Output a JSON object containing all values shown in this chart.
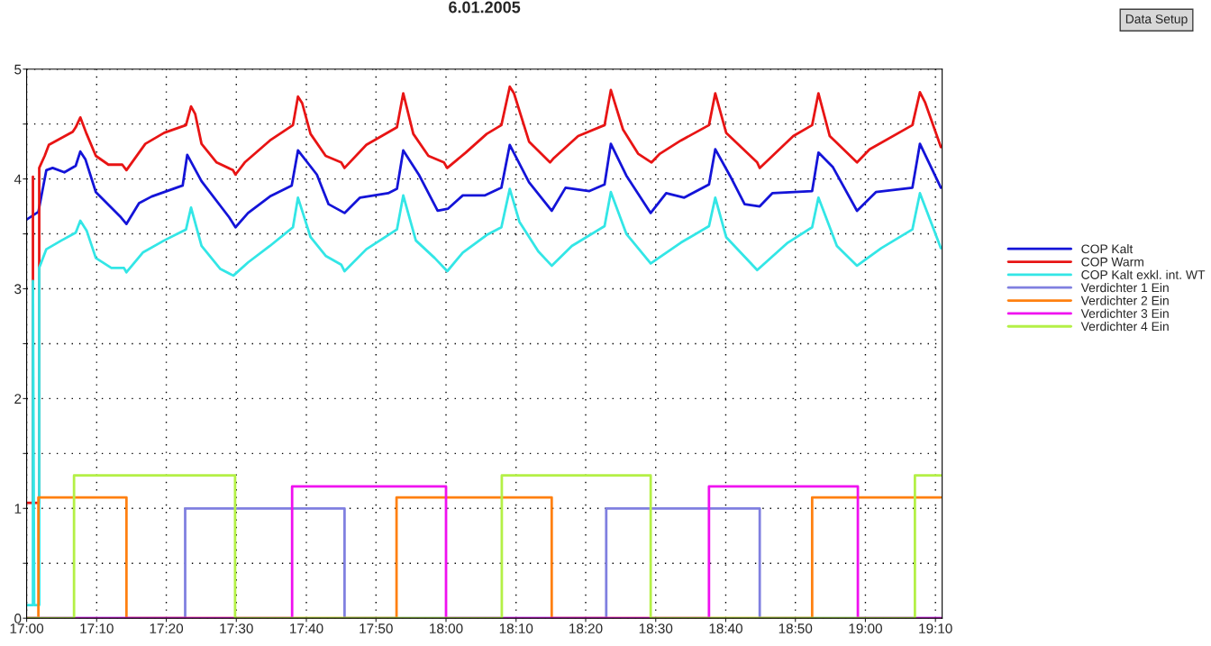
{
  "chart_data": {
    "type": "line",
    "title": "6.01.2005",
    "annotations": [
      "Data Setup"
    ],
    "xlim": [
      17.0,
      19.183
    ],
    "ylim": [
      0,
      5
    ],
    "xticks": [
      {
        "value": 17.0,
        "label": "17:00"
      },
      {
        "value": 17.167,
        "label": "17:10"
      },
      {
        "value": 17.333,
        "label": "17:20"
      },
      {
        "value": 17.5,
        "label": "17:30"
      },
      {
        "value": 17.667,
        "label": "17:40"
      },
      {
        "value": 17.833,
        "label": "17:50"
      },
      {
        "value": 18.0,
        "label": "18:00"
      },
      {
        "value": 18.167,
        "label": "18:10"
      },
      {
        "value": 18.333,
        "label": "18:20"
      },
      {
        "value": 18.5,
        "label": "18:30"
      },
      {
        "value": 18.667,
        "label": "18:40"
      },
      {
        "value": 18.833,
        "label": "18:50"
      },
      {
        "value": 19.0,
        "label": "19:00"
      },
      {
        "value": 19.167,
        "label": "19:10"
      }
    ],
    "yticks": [
      0,
      {
        "value": 0.5,
        "label": null
      },
      1,
      {
        "value": 1.5,
        "label": null
      },
      2,
      {
        "value": 2.5,
        "label": null
      },
      3,
      {
        "value": 3.5,
        "label": null
      },
      4,
      {
        "value": 4.5,
        "label": null
      },
      5
    ],
    "grid": true,
    "legend": "right",
    "line_style": "solid",
    "series": [
      {
        "name": "COP Kalt",
        "color": "#1414d8",
        "x": [
          17.0,
          17.028,
          17.035,
          17.047,
          17.062,
          17.09,
          17.117,
          17.128,
          17.14,
          17.165,
          17.225,
          17.238,
          17.268,
          17.298,
          17.372,
          17.383,
          17.417,
          17.483,
          17.498,
          17.528,
          17.58,
          17.632,
          17.647,
          17.692,
          17.72,
          17.758,
          17.795,
          17.862,
          17.883,
          17.898,
          17.935,
          17.98,
          18.005,
          18.04,
          18.092,
          18.132,
          18.152,
          18.198,
          18.252,
          18.285,
          18.342,
          18.378,
          18.393,
          18.43,
          18.488,
          18.525,
          18.568,
          18.627,
          18.642,
          18.677,
          18.712,
          18.748,
          18.778,
          18.873,
          18.888,
          18.922,
          18.98,
          19.025,
          19.112,
          19.13,
          19.18
        ],
        "values": [
          3.63,
          3.7,
          3.84,
          4.08,
          4.1,
          4.06,
          4.12,
          4.25,
          4.18,
          3.88,
          3.65,
          3.59,
          3.78,
          3.84,
          3.94,
          4.22,
          3.98,
          3.65,
          3.56,
          3.69,
          3.84,
          3.94,
          4.26,
          4.04,
          3.77,
          3.69,
          3.83,
          3.87,
          3.91,
          4.26,
          4.04,
          3.71,
          3.73,
          3.85,
          3.85,
          3.92,
          4.31,
          3.97,
          3.71,
          3.92,
          3.89,
          3.95,
          4.32,
          4.03,
          3.69,
          3.87,
          3.83,
          3.95,
          4.27,
          4.03,
          3.77,
          3.75,
          3.87,
          3.89,
          4.24,
          4.11,
          3.71,
          3.88,
          3.92,
          4.32,
          3.92
        ]
      },
      {
        "name": "COP Warm",
        "color": "#e81414",
        "x": [
          17.0,
          17.015,
          17.015,
          17.015,
          17.03,
          17.03,
          17.043,
          17.053,
          17.11,
          17.117,
          17.128,
          17.143,
          17.165,
          17.195,
          17.228,
          17.238,
          17.283,
          17.328,
          17.38,
          17.392,
          17.402,
          17.417,
          17.453,
          17.492,
          17.498,
          17.52,
          17.58,
          17.635,
          17.647,
          17.657,
          17.677,
          17.713,
          17.75,
          17.758,
          17.81,
          17.883,
          17.898,
          17.922,
          17.958,
          17.995,
          18.003,
          18.047,
          18.097,
          18.132,
          18.152,
          18.162,
          18.198,
          18.248,
          18.257,
          18.315,
          18.378,
          18.393,
          18.422,
          18.458,
          18.49,
          18.51,
          18.56,
          18.627,
          18.642,
          18.668,
          18.742,
          18.748,
          18.828,
          18.873,
          18.888,
          18.915,
          18.98,
          19.01,
          19.112,
          19.13,
          19.142,
          19.18
        ],
        "values": [
          1.05,
          1.05,
          4.02,
          1.05,
          1.05,
          4.1,
          4.21,
          4.31,
          4.43,
          4.47,
          4.56,
          4.41,
          4.21,
          4.13,
          4.13,
          4.08,
          4.32,
          4.42,
          4.49,
          4.66,
          4.59,
          4.32,
          4.15,
          4.08,
          4.04,
          4.15,
          4.35,
          4.49,
          4.75,
          4.69,
          4.41,
          4.21,
          4.15,
          4.1,
          4.31,
          4.47,
          4.78,
          4.41,
          4.21,
          4.15,
          4.1,
          4.24,
          4.41,
          4.49,
          4.84,
          4.78,
          4.34,
          4.15,
          4.19,
          4.39,
          4.49,
          4.81,
          4.45,
          4.23,
          4.15,
          4.23,
          4.35,
          4.49,
          4.78,
          4.42,
          4.15,
          4.1,
          4.39,
          4.49,
          4.78,
          4.39,
          4.15,
          4.27,
          4.49,
          4.79,
          4.7,
          4.29
        ]
      },
      {
        "name": "COP Kalt exkl. int. WT",
        "color": "#33e6e6",
        "x": [
          17.0,
          17.015,
          17.015,
          17.018,
          17.03,
          17.03,
          17.047,
          17.083,
          17.117,
          17.128,
          17.143,
          17.165,
          17.202,
          17.232,
          17.238,
          17.277,
          17.328,
          17.38,
          17.392,
          17.417,
          17.462,
          17.493,
          17.528,
          17.58,
          17.635,
          17.647,
          17.677,
          17.713,
          17.75,
          17.758,
          17.81,
          17.883,
          17.898,
          17.928,
          17.973,
          18.003,
          18.04,
          18.097,
          18.132,
          18.152,
          18.175,
          18.22,
          18.252,
          18.3,
          18.378,
          18.393,
          18.43,
          18.488,
          18.56,
          18.627,
          18.642,
          18.668,
          18.742,
          18.815,
          18.873,
          18.888,
          18.932,
          18.98,
          19.038,
          19.112,
          19.13,
          19.18
        ],
        "values": [
          0.12,
          0.12,
          3.07,
          0.12,
          0.12,
          3.19,
          3.36,
          3.44,
          3.51,
          3.62,
          3.53,
          3.28,
          3.19,
          3.19,
          3.15,
          3.33,
          3.44,
          3.54,
          3.74,
          3.39,
          3.18,
          3.12,
          3.24,
          3.39,
          3.56,
          3.83,
          3.47,
          3.3,
          3.22,
          3.16,
          3.36,
          3.54,
          3.85,
          3.44,
          3.28,
          3.16,
          3.33,
          3.49,
          3.56,
          3.91,
          3.61,
          3.34,
          3.21,
          3.39,
          3.57,
          3.88,
          3.5,
          3.23,
          3.42,
          3.57,
          3.83,
          3.47,
          3.17,
          3.42,
          3.56,
          3.83,
          3.39,
          3.21,
          3.37,
          3.54,
          3.87,
          3.37
        ]
      },
      {
        "name": "Verdichter 1 Ein",
        "color": "#8080e0",
        "type": "step",
        "x": [
          17.0,
          17.378,
          17.758,
          18.382,
          18.748,
          19.18
        ],
        "values": [
          0,
          1,
          0,
          1,
          0,
          0
        ]
      },
      {
        "name": "Verdichter 2 Ein",
        "color": "#ff8010",
        "type": "step",
        "x": [
          17.0,
          17.028,
          17.238,
          17.882,
          18.252,
          18.873,
          19.18
        ],
        "values": [
          0,
          1.1,
          0,
          1.1,
          0,
          1.1,
          1.1
        ]
      },
      {
        "name": "Verdichter 3 Ein",
        "color": "#f010f0",
        "type": "step",
        "x": [
          17.0,
          17.633,
          18.0,
          18.627,
          18.982,
          19.18
        ],
        "values": [
          0,
          1.2,
          0,
          1.2,
          0,
          0
        ]
      },
      {
        "name": "Verdichter 4 Ein",
        "color": "#b4f046",
        "type": "step",
        "x": [
          17.0,
          17.113,
          17.497,
          18.133,
          18.488,
          19.118,
          19.18
        ],
        "values": [
          0,
          1.3,
          0,
          1.3,
          0,
          1.3,
          1.3
        ]
      }
    ]
  }
}
